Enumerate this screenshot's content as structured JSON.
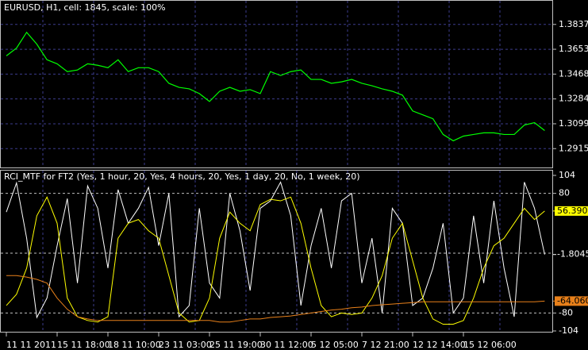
{
  "chart_data": [
    {
      "type": "line",
      "title": "EURUSD, H1, cell: 1845, scale: 100%",
      "color": "#00ff00",
      "ylim": [
        1.2775,
        1.4013
      ],
      "yticks": [
        1.38375,
        {
          "value": 1.3653,
          "label": "1.36530"
        },
        1.34685,
        {
          "value": 1.3284,
          "label": "1.32840"
        },
        1.30995,
        {
          "value": 1.2915,
          "label": "1.29150"
        }
      ],
      "grid": true,
      "values": [
        1.3604,
        1.3662,
        1.3779,
        1.3691,
        1.3575,
        1.3545,
        1.3487,
        1.3499,
        1.3545,
        1.3534,
        1.3516,
        1.3575,
        1.3487,
        1.3516,
        1.3516,
        1.3487,
        1.34,
        1.337,
        1.3359,
        1.3324,
        1.3265,
        1.3341,
        1.337,
        1.3341,
        1.3353,
        1.3324,
        1.3487,
        1.3458,
        1.3487,
        1.3499,
        1.3429,
        1.3429,
        1.34,
        1.3411,
        1.3429,
        1.34,
        1.3382,
        1.3359,
        1.3341,
        1.3312,
        1.3195,
        1.3166,
        1.3137,
        1.302,
        1.2973,
        1.3008,
        1.302,
        1.3032,
        1.3032,
        1.302,
        1.302,
        1.309,
        1.3108,
        1.3049
      ]
    },
    {
      "type": "line",
      "title": "RCI_MTF for FT2 (Yes, 1 hour, 20, Yes, 4 hours, 20, Yes, 1 day, 20, No, 1 week, 20)",
      "ylim": [
        -104,
        104
      ],
      "yticks": [
        104,
        80,
        -80,
        -104
      ],
      "levels": [
        80,
        0,
        -80
      ],
      "categories": [
        "11 11 2011",
        null,
        null,
        null,
        null,
        "15 11 18:00",
        null,
        null,
        null,
        null,
        "18 11 10:00",
        null,
        null,
        null,
        null,
        "23 11 03:00",
        null,
        null,
        null,
        null,
        "25 11 19:00",
        null,
        null,
        null,
        null,
        "30 11 12:00",
        null,
        null,
        null,
        null,
        "5 12 05:00",
        null,
        null,
        null,
        null,
        "7 12 21:00",
        null,
        null,
        null,
        null,
        "12 12 14:00",
        null,
        null,
        null,
        null,
        "15 12 06:00",
        null,
        null,
        null,
        null,
        null,
        null,
        null,
        null
      ],
      "series": [
        {
          "color": "#ffffff",
          "values": [
            55,
            94,
            20,
            -86,
            -60,
            10,
            73,
            -40,
            90,
            60,
            -20,
            85,
            40,
            60,
            88,
            10,
            80,
            -85,
            -70,
            60,
            -40,
            -60,
            80,
            30,
            -50,
            60,
            70,
            95,
            50,
            -70,
            10,
            60,
            -20,
            70,
            80,
            -40,
            20,
            -80,
            60,
            40,
            -70,
            -60,
            -20,
            40,
            -80,
            -60,
            50,
            -40,
            70,
            -20,
            -85,
            95,
            60,
            -1.8045
          ]
        },
        {
          "color": "#ffff00",
          "values": [
            -70,
            -55,
            -20,
            50,
            75,
            40,
            -60,
            -85,
            -90,
            -92,
            -85,
            20,
            40,
            45,
            30,
            20,
            -30,
            -80,
            -92,
            -90,
            -60,
            20,
            55,
            40,
            30,
            65,
            72,
            70,
            75,
            40,
            -20,
            -70,
            -85,
            -80,
            -82,
            -80,
            -60,
            -30,
            20,
            40,
            -10,
            -60,
            -88,
            -95,
            -95,
            -90,
            -60,
            -20,
            10,
            20,
            40,
            60,
            45,
            56.3909
          ]
        },
        {
          "color": "#e8801a",
          "values": [
            -30,
            -30,
            -32,
            -35,
            -40,
            -60,
            -75,
            -85,
            -88,
            -90,
            -90,
            -90,
            -90,
            -90,
            -90,
            -90,
            -90,
            -90,
            -90,
            -90,
            -90,
            -92,
            -92,
            -90,
            -88,
            -88,
            -86,
            -85,
            -84,
            -82,
            -80,
            -78,
            -76,
            -75,
            -73,
            -72,
            -70,
            -69,
            -68,
            -67,
            -66,
            -65,
            -65,
            -65,
            -65,
            -65,
            -65,
            -65,
            -65,
            -65,
            -65,
            -65,
            -65,
            -64.06
          ],
          "value_labels": [
            null,
            null,
            null,
            null,
            null,
            null,
            null,
            null,
            null,
            null,
            null,
            null,
            null,
            null,
            null,
            null,
            null,
            null,
            null,
            null,
            null,
            null,
            null,
            null,
            null,
            null,
            null,
            null,
            null,
            null,
            null,
            null,
            null,
            null,
            null,
            null,
            null,
            null,
            null,
            null,
            null,
            null,
            null,
            null,
            null,
            null,
            null,
            null,
            null,
            null,
            null,
            null,
            null,
            "-64.060"
          ]
        }
      ]
    }
  ]
}
